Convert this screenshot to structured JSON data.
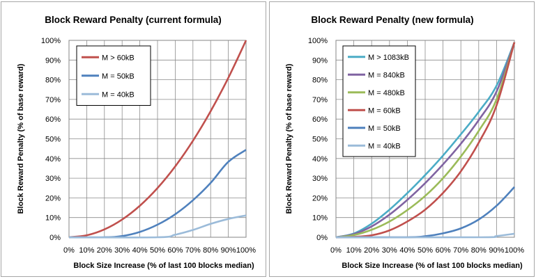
{
  "chart_data": [
    {
      "type": "line",
      "title": "Block Reward Penalty (current formula)",
      "xlabel": "Block Size Increase (% of last 100 blocks median)",
      "ylabel": "Block Reward Penalty (% of base reward)",
      "x_ticks": [
        "0%",
        "10%",
        "20%",
        "30%",
        "40%",
        "50%",
        "60%",
        "70%",
        "80%",
        "90%",
        "100%"
      ],
      "y_ticks": [
        "0%",
        "10%",
        "20%",
        "30%",
        "40%",
        "50%",
        "60%",
        "70%",
        "80%",
        "90%",
        "100%"
      ],
      "xlim": [
        0,
        100
      ],
      "ylim": [
        0,
        100
      ],
      "grid": true,
      "legend_position": "top-left",
      "series": [
        {
          "name": "M > 60kB",
          "color": "#c0504d",
          "points": [
            [
              0,
              0
            ],
            [
              10,
              1
            ],
            [
              20,
              4
            ],
            [
              30,
              9
            ],
            [
              40,
              16
            ],
            [
              50,
              25
            ],
            [
              60,
              36
            ],
            [
              70,
              49
            ],
            [
              80,
              64
            ],
            [
              90,
              81
            ],
            [
              100,
              100
            ]
          ]
        },
        {
          "name": "M = 50kB",
          "color": "#4f81bd",
          "points": [
            [
              0,
              0
            ],
            [
              20,
              0
            ],
            [
              30,
              0.6
            ],
            [
              40,
              2.7
            ],
            [
              50,
              6.4
            ],
            [
              60,
              11.7
            ],
            [
              70,
              18.8
            ],
            [
              80,
              27.6
            ],
            [
              90,
              38.3
            ],
            [
              100,
              44.4
            ]
          ]
        },
        {
          "name": "M = 40kB",
          "color": "#9bbbd9",
          "points": [
            [
              0,
              0
            ],
            [
              50,
              0
            ],
            [
              60,
              1.3
            ],
            [
              70,
              3.7
            ],
            [
              80,
              6.8
            ],
            [
              90,
              9.3
            ],
            [
              100,
              11.1
            ]
          ]
        }
      ]
    },
    {
      "type": "line",
      "title": "Block Reward Penalty (new formula)",
      "xlabel": "Block Size Increase (% of last 100 blocks median)",
      "ylabel": "Block Reward Penalty (% of base reward)",
      "x_ticks": [
        "0%",
        "10%",
        "20%",
        "30%",
        "40%",
        "50%",
        "60%",
        "70%",
        "80%",
        "90%",
        "100%"
      ],
      "y_ticks": [
        "0%",
        "10%",
        "20%",
        "30%",
        "40%",
        "50%",
        "60%",
        "70%",
        "80%",
        "90%",
        "100%"
      ],
      "xlim": [
        0,
        100
      ],
      "ylim": [
        0,
        100
      ],
      "grid": true,
      "legend_position": "top-left",
      "series": [
        {
          "name": "M > 1083kB",
          "color": "#4bacc6",
          "points": [
            [
              0,
              0
            ],
            [
              10,
              1.9
            ],
            [
              20,
              6.9
            ],
            [
              30,
              14
            ],
            [
              40,
              22.4
            ],
            [
              50,
              31.6
            ],
            [
              60,
              41.5
            ],
            [
              70,
              52.3
            ],
            [
              80,
              63.7
            ],
            [
              90,
              77
            ],
            [
              100,
              99
            ]
          ]
        },
        {
          "name": "M = 840kB",
          "color": "#8064a2",
          "points": [
            [
              0,
              0
            ],
            [
              10,
              1.6
            ],
            [
              20,
              5.5
            ],
            [
              30,
              11.5
            ],
            [
              40,
              19
            ],
            [
              50,
              27.5
            ],
            [
              60,
              37
            ],
            [
              70,
              47.5
            ],
            [
              80,
              59.5
            ],
            [
              90,
              74
            ],
            [
              100,
              99
            ]
          ]
        },
        {
          "name": "M = 480kB",
          "color": "#9bbb59",
          "points": [
            [
              0,
              0
            ],
            [
              10,
              1.1
            ],
            [
              20,
              3.8
            ],
            [
              30,
              8
            ],
            [
              40,
              13.8
            ],
            [
              50,
              21
            ],
            [
              60,
              30
            ],
            [
              70,
              41
            ],
            [
              80,
              54
            ],
            [
              90,
              70
            ],
            [
              100,
              99
            ]
          ]
        },
        {
          "name": "M = 60kB",
          "color": "#c0504d",
          "points": [
            [
              0,
              0
            ],
            [
              10,
              0.2
            ],
            [
              20,
              1
            ],
            [
              30,
              3.5
            ],
            [
              40,
              8
            ],
            [
              50,
              14
            ],
            [
              60,
              22.5
            ],
            [
              70,
              33.5
            ],
            [
              80,
              48
            ],
            [
              90,
              67
            ],
            [
              100,
              99
            ]
          ]
        },
        {
          "name": "M = 50kB",
          "color": "#4f81bd",
          "points": [
            [
              0,
              0
            ],
            [
              40,
              0
            ],
            [
              50,
              0.5
            ],
            [
              60,
              2
            ],
            [
              70,
              4.5
            ],
            [
              80,
              9
            ],
            [
              90,
              16
            ],
            [
              100,
              25.5
            ]
          ]
        },
        {
          "name": "M = 40kB",
          "color": "#9bbbd9",
          "points": [
            [
              0,
              0
            ],
            [
              80,
              0
            ],
            [
              90,
              0.6
            ],
            [
              100,
              1.8
            ]
          ]
        }
      ]
    }
  ]
}
